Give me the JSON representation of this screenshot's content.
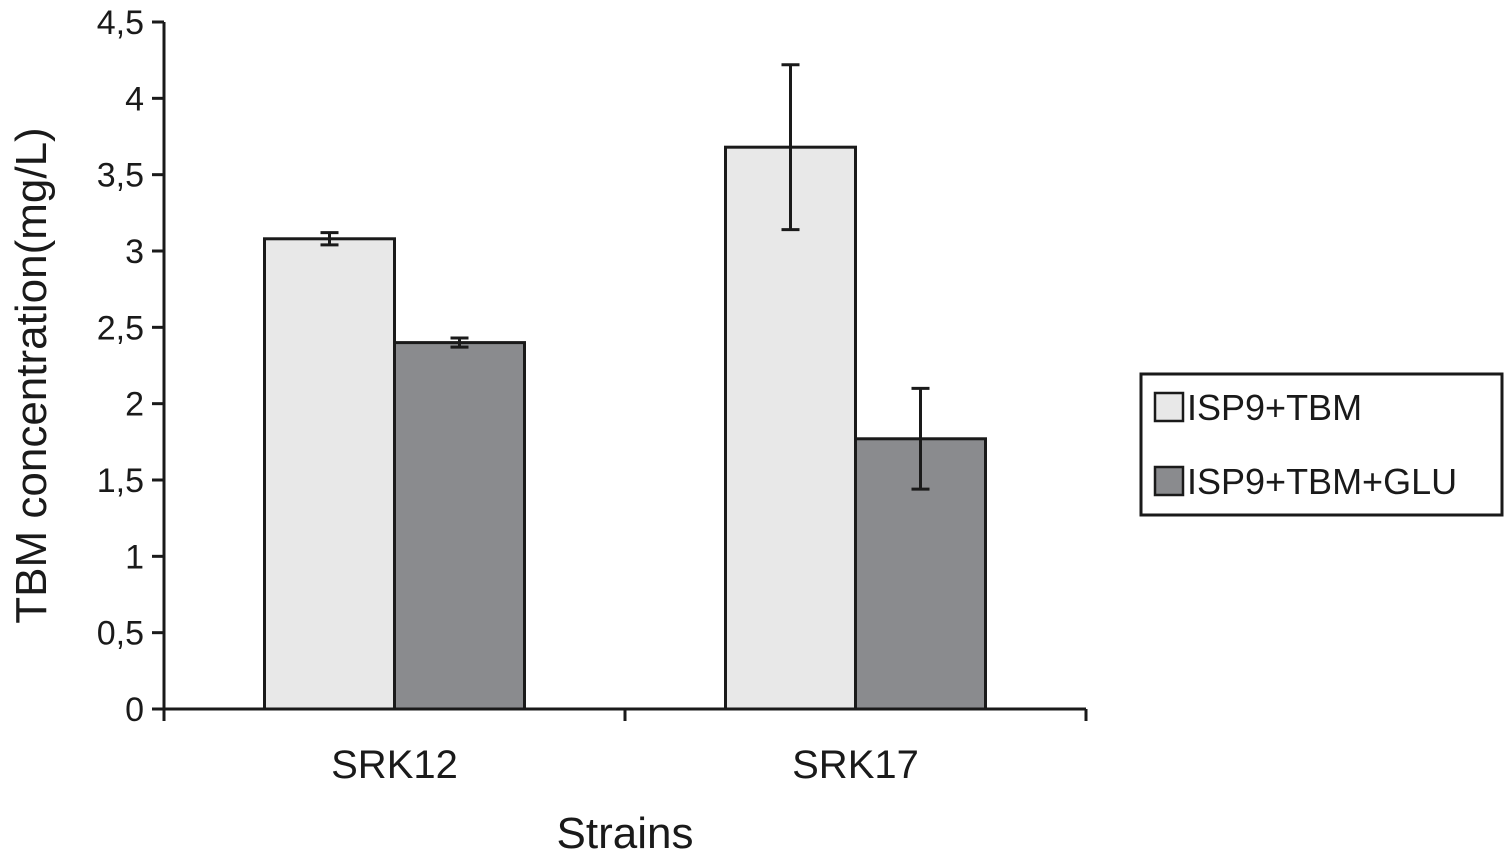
{
  "chart_data": {
    "type": "bar",
    "title": "",
    "xlabel": "Strains",
    "ylabel": "TBM concentration(mg/L)",
    "ylim": [
      0,
      4.5
    ],
    "yticks": [
      {
        "value": 0,
        "label": "0"
      },
      {
        "value": 0.5,
        "label": "0,5"
      },
      {
        "value": 1,
        "label": "1"
      },
      {
        "value": 1.5,
        "label": "1,5"
      },
      {
        "value": 2,
        "label": "2"
      },
      {
        "value": 2.5,
        "label": "2,5"
      },
      {
        "value": 3,
        "label": "3"
      },
      {
        "value": 3.5,
        "label": "3,5"
      },
      {
        "value": 4,
        "label": "4"
      },
      {
        "value": 4.5,
        "label": "4,5"
      }
    ],
    "categories": [
      "SRK12",
      "SRK17"
    ],
    "series": [
      {
        "name": "ISP9+TBM",
        "color": "#e8e8e8",
        "values": [
          3.08,
          3.68
        ],
        "errors": [
          0.04,
          0.54
        ]
      },
      {
        "name": "ISP9+TBM+GLU",
        "color": "#8a8b8e",
        "values": [
          2.4,
          1.77
        ],
        "errors": [
          0.03,
          0.33
        ]
      }
    ],
    "grid": false,
    "legend_position": "right"
  }
}
